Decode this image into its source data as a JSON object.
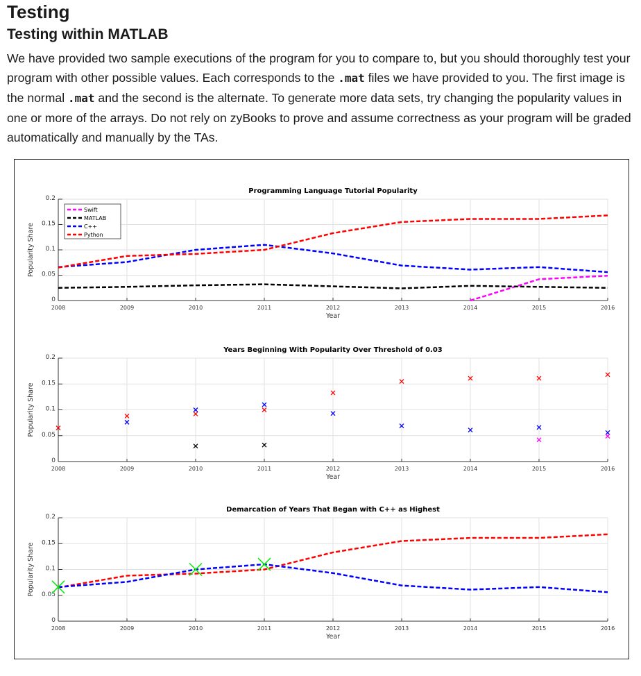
{
  "heading": "Testing",
  "subheading": "Testing within MATLAB",
  "paragraph": {
    "t1": "We have provided two sample executions of the program for you to compare to, but you should thoroughly test your program with other possible values. Each corresponds to the ",
    "code1": ".mat",
    "t2": " files we have provided to you. The first image is the normal ",
    "code2": ".mat",
    "t3": " and the second is the alternate. To generate more data sets, try changing the popularity values in one or more of the arrays. Do not rely on zyBooks to prove and assume correctness as your program will be graded automatically and manually by the TAs."
  },
  "chart_data": [
    {
      "type": "line",
      "title": "Programming Language Tutorial Popularity",
      "xlabel": "Year",
      "ylabel": "Popularity Share",
      "xlim": [
        2008,
        2016
      ],
      "ylim": [
        0,
        0.2
      ],
      "grid": true,
      "legend": "top-left",
      "x": [
        2008,
        2009,
        2010,
        2011,
        2012,
        2013,
        2014,
        2015,
        2016
      ],
      "xticks": [
        "2008",
        "2009",
        "2010",
        "2011",
        "2012",
        "2013",
        "2014",
        "2015",
        "2016"
      ],
      "yticks": [
        "0",
        "0.05",
        "0.1",
        "0.15",
        "0.2"
      ],
      "series": [
        {
          "name": "Swift",
          "color": "#ff00ff",
          "values": [
            null,
            null,
            null,
            null,
            null,
            null,
            0,
            0.042,
            0.049
          ]
        },
        {
          "name": "MATLAB",
          "color": "#000000",
          "values": [
            0.025,
            0.027,
            0.03,
            0.032,
            0.028,
            0.024,
            0.029,
            0.027,
            0.025
          ]
        },
        {
          "name": "C++",
          "color": "#0000ff",
          "values": [
            0.066,
            0.076,
            0.1,
            0.11,
            0.093,
            0.069,
            0.061,
            0.066,
            0.056
          ]
        },
        {
          "name": "Python",
          "color": "#ff0000",
          "values": [
            0.065,
            0.088,
            0.092,
            0.1,
            0.133,
            0.155,
            0.161,
            0.161,
            0.168
          ]
        }
      ]
    },
    {
      "type": "scatter",
      "title": "Years Beginning With Popularity Over Threshold of 0.03",
      "xlabel": "Year",
      "ylabel": "Popularity Share",
      "xlim": [
        2008,
        2016
      ],
      "ylim": [
        0,
        0.2
      ],
      "grid": true,
      "xticks": [
        "2008",
        "2009",
        "2010",
        "2011",
        "2012",
        "2013",
        "2014",
        "2015",
        "2016"
      ],
      "yticks": [
        "0",
        "0.05",
        "0.1",
        "0.15",
        "0.2"
      ],
      "series": [
        {
          "color": "#ff0000",
          "points": [
            [
              2008,
              0.065
            ],
            [
              2009,
              0.088
            ],
            [
              2010,
              0.092
            ],
            [
              2011,
              0.1
            ],
            [
              2012,
              0.133
            ],
            [
              2013,
              0.155
            ],
            [
              2014,
              0.161
            ],
            [
              2015,
              0.161
            ],
            [
              2016,
              0.168
            ]
          ]
        },
        {
          "color": "#0000ff",
          "points": [
            [
              2009,
              0.076
            ],
            [
              2010,
              0.1
            ],
            [
              2011,
              0.11
            ],
            [
              2012,
              0.093
            ],
            [
              2013,
              0.069
            ],
            [
              2014,
              0.061
            ],
            [
              2015,
              0.066
            ],
            [
              2016,
              0.056
            ]
          ]
        },
        {
          "color": "#000000",
          "points": [
            [
              2010,
              0.03
            ],
            [
              2011,
              0.032
            ]
          ]
        },
        {
          "color": "#ff00ff",
          "points": [
            [
              2015,
              0.042
            ],
            [
              2016,
              0.049
            ]
          ]
        }
      ]
    },
    {
      "type": "line",
      "title": "Demarcation of Years That Began with C++ as Highest",
      "xlabel": "Year",
      "ylabel": "Popularity Share",
      "xlim": [
        2008,
        2016
      ],
      "ylim": [
        0,
        0.2
      ],
      "grid": true,
      "x": [
        2008,
        2009,
        2010,
        2011,
        2012,
        2013,
        2014,
        2015,
        2016
      ],
      "xticks": [
        "2008",
        "2009",
        "2010",
        "2011",
        "2012",
        "2013",
        "2014",
        "2015",
        "2016"
      ],
      "yticks": [
        "0",
        "0.05",
        "0.1",
        "0.15",
        "0.2"
      ],
      "series": [
        {
          "color": "#ff0000",
          "values": [
            0.065,
            0.088,
            0.092,
            0.1,
            0.133,
            0.155,
            0.161,
            0.161,
            0.168
          ]
        },
        {
          "color": "#0000ff",
          "values": [
            0.066,
            0.076,
            0.1,
            0.11,
            0.093,
            0.069,
            0.061,
            0.066,
            0.056
          ]
        }
      ],
      "markers": {
        "color": "#00ee00",
        "points": [
          [
            2008,
            0.066
          ],
          [
            2010,
            0.1
          ],
          [
            2011,
            0.11
          ]
        ]
      }
    }
  ]
}
